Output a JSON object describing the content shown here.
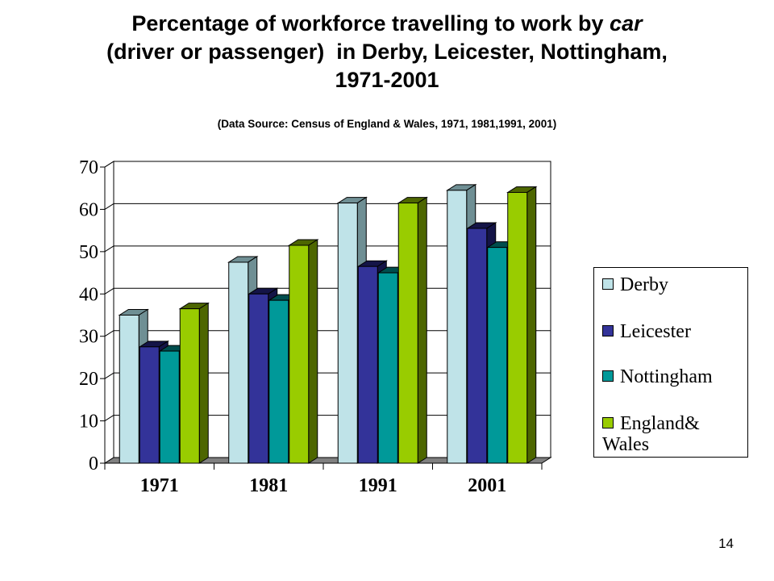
{
  "title": {
    "line1_pre": "Percentage of workforce travelling to work by ",
    "line1_em": "car",
    "line2": "(driver or passenger)  in Derby, Leicester, Nottingham,",
    "line3": "1971-2001"
  },
  "subtitle": "(Data Source: Census of England & Wales, 1971, 1981,1991, 2001)",
  "slide_number": "14",
  "chart_data": {
    "type": "bar",
    "title": "Percentage of workforce travelling to work by car (driver or passenger)  in Derby, Leicester, Nottingham, 1971-2001",
    "categories": [
      "1971",
      "1981",
      "1991",
      "2001"
    ],
    "series": [
      {
        "name": "Derby",
        "values": [
          35,
          47.5,
          61.5,
          64.5
        ],
        "color": "#bfe3e8",
        "side": "#6f8f94"
      },
      {
        "name": "Leicester",
        "values": [
          27.5,
          40,
          46.5,
          55.5
        ],
        "color": "#333399",
        "side": "#141447"
      },
      {
        "name": "Nottingham",
        "values": [
          26.5,
          38.5,
          45,
          51
        ],
        "color": "#009999",
        "side": "#004d4d"
      },
      {
        "name": "England& Wales",
        "legend_lines": [
          "England&",
          "Wales"
        ],
        "values": [
          36.5,
          51.5,
          61.5,
          64
        ],
        "color": "#99cc00",
        "side": "#4d6600"
      }
    ],
    "yticks": [
      "0",
      "10",
      "20",
      "30",
      "40",
      "50",
      "60",
      "70"
    ],
    "ylim": [
      0,
      70
    ],
    "xlabel": "",
    "ylabel": "",
    "grid": true,
    "legend_position": "right"
  }
}
